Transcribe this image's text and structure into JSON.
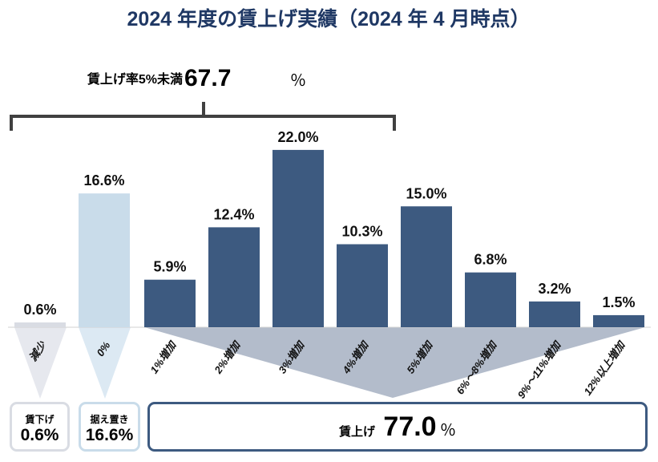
{
  "chart_data": {
    "type": "bar",
    "title": "2024 年度の賃上げ実績（2024 年 4 月時点）",
    "categories": [
      "減少",
      "0%",
      "1%増加",
      "2%増加",
      "3%増加",
      "4%増加",
      "5%増加",
      "6%～8%増加",
      "9%～11%増加",
      "12%以上増加"
    ],
    "values": [
      0.6,
      16.6,
      5.9,
      12.4,
      22.0,
      10.3,
      15.0,
      6.8,
      3.2,
      1.5
    ],
    "value_labels": [
      "0.6%",
      "16.6%",
      "5.9%",
      "12.4%",
      "22.0%",
      "10.3%",
      "15.0%",
      "6.8%",
      "3.2%",
      "1.5%"
    ],
    "bar_colors": [
      "#d9dce3",
      "#c9dcea",
      "#3d5a80",
      "#3d5a80",
      "#3d5a80",
      "#3d5a80",
      "#3d5a80",
      "#3d5a80",
      "#3d5a80",
      "#3d5a80"
    ],
    "grid": false,
    "bracket": {
      "label": "賃上げ率5%未満",
      "value": "67.7",
      "unit": "％"
    },
    "summary": [
      {
        "label": "賃下げ",
        "value": "0.6%",
        "color": "#d9dce3"
      },
      {
        "label": "据え置き",
        "value": "16.6%",
        "color": "#c9dcea"
      },
      {
        "label": "賃上げ",
        "value": "77.0",
        "unit": "％",
        "color": "#3d5a80"
      }
    ]
  }
}
